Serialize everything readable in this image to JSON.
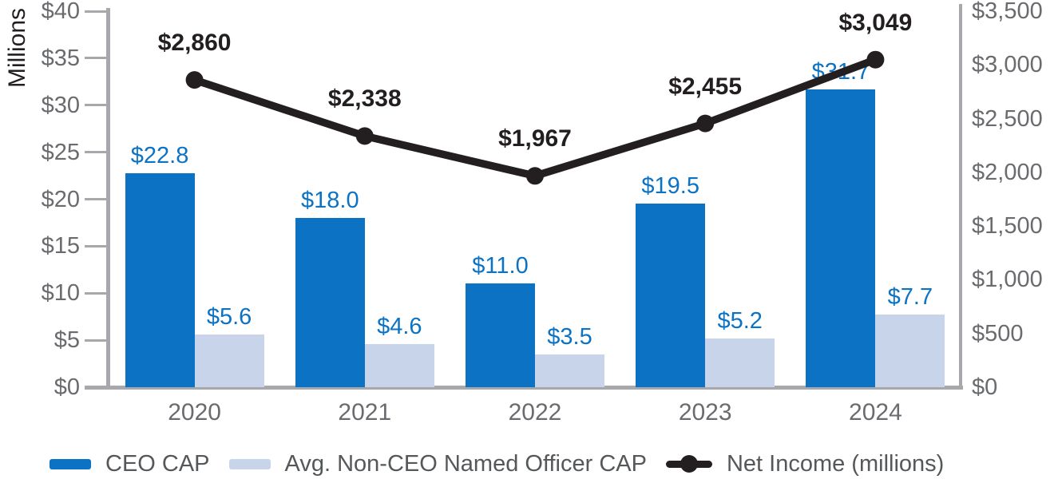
{
  "chart_data": {
    "type": "bar",
    "subtype": "grouped-bars-with-line-overlay",
    "title": "",
    "categories": [
      "2020",
      "2021",
      "2022",
      "2023",
      "2024"
    ],
    "series": [
      {
        "name": "CEO CAP",
        "render": "bar",
        "axis": "left",
        "color": "#0b72c4",
        "values": [
          22.8,
          18.0,
          11.0,
          19.5,
          31.7
        ],
        "data_labels": [
          "$22.8",
          "$18.0",
          "$11.0",
          "$19.5",
          "$31.7"
        ]
      },
      {
        "name": "Avg. Non-CEO Named Officer CAP",
        "render": "bar",
        "axis": "left",
        "color": "#c8d4ea",
        "values": [
          5.6,
          4.6,
          3.5,
          5.2,
          7.7
        ],
        "data_labels": [
          "$5.6",
          "$4.6",
          "$3.5",
          "$5.2",
          "$7.7"
        ]
      },
      {
        "name": "Net Income (millions)",
        "render": "line",
        "axis": "right",
        "color": "#231f20",
        "values": [
          2860,
          2338,
          1967,
          2455,
          3049
        ],
        "data_labels": [
          "$2,860",
          "$2,338",
          "$1,967",
          "$2,455",
          "$3,049"
        ]
      }
    ],
    "left_axis": {
      "title": "Millions",
      "min": 0,
      "max": 40,
      "step": 5,
      "tick_labels": [
        "$0",
        "$5",
        "$10",
        "$15",
        "$20",
        "$25",
        "$30",
        "$35",
        "$40"
      ]
    },
    "right_axis": {
      "title": "",
      "min": 0,
      "max": 3500,
      "step": 500,
      "tick_labels": [
        "$0",
        "$500",
        "$1,000",
        "$1,500",
        "$2,000",
        "$2,500",
        "$3,000",
        "$3,500"
      ]
    },
    "grid": "off",
    "legend_position": "bottom-left",
    "legend": [
      {
        "label": "CEO CAP",
        "swatch": "bar",
        "color": "#0b72c4"
      },
      {
        "label": "Avg. Non-CEO Named Officer CAP",
        "swatch": "bar",
        "color": "#c8d4ea"
      },
      {
        "label": "Net Income (millions)",
        "swatch": "line-marker",
        "color": "#231f20"
      }
    ],
    "colors": {
      "bar_primary": "#0b72c4",
      "bar_secondary": "#c8d4ea",
      "line": "#231f20",
      "axis_line": "#a6a8ab",
      "tick_text": "#696b6e",
      "legend_text": "#55585a",
      "bar_label_text": "#0b72c4",
      "line_label_text": "#231f20"
    }
  }
}
